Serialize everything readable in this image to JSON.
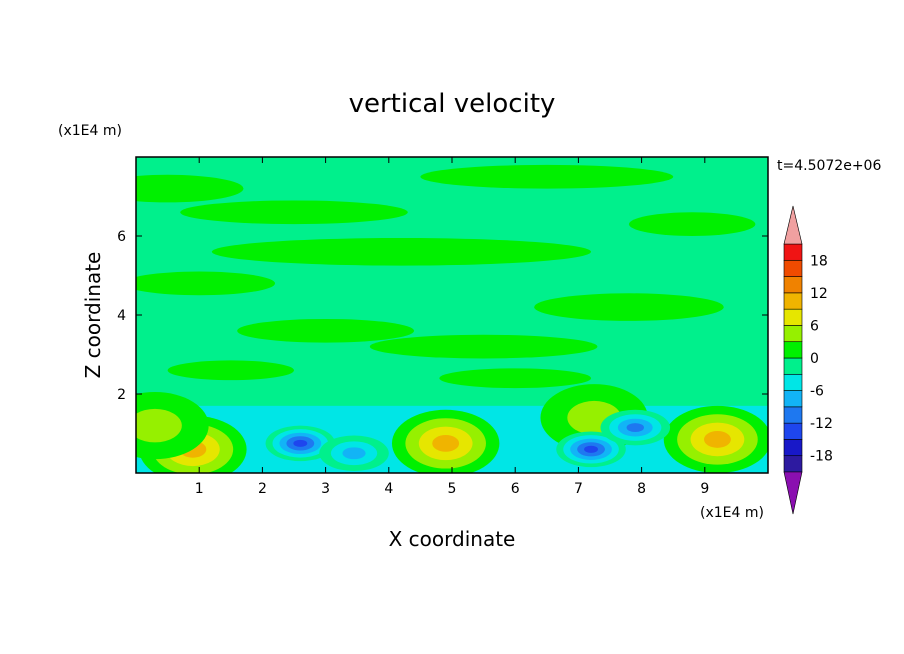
{
  "chart_data": {
    "type": "heatmap",
    "title": "vertical velocity",
    "xlabel": "X coordinate",
    "ylabel": "Z coordinate",
    "x_unit": "(x1E4 m)",
    "y_unit": "(x1E4 m)",
    "time_label": "t=4.5072e+06",
    "xlim": [
      0,
      10
    ],
    "ylim": [
      0,
      8
    ],
    "x_ticks": [
      "1",
      "2",
      "3",
      "4",
      "5",
      "6",
      "7",
      "8",
      "9"
    ],
    "y_ticks": [
      "2",
      "4",
      "6"
    ],
    "colorbar": {
      "levels": [
        -21,
        -18,
        -15,
        -12,
        -9,
        -6,
        -3,
        0,
        3,
        6,
        9,
        12,
        15,
        18,
        21
      ],
      "tick_labels": [
        "18",
        "12",
        "6",
        "0",
        "-6",
        "-12",
        "-18"
      ],
      "colors": [
        "#6a0dad",
        "#2d1aa0",
        "#1818c8",
        "#1e46ee",
        "#1e78f0",
        "#12b4f6",
        "#00e6e6",
        "#00f08c",
        "#00f000",
        "#96f000",
        "#e6e600",
        "#f0b400",
        "#f08200",
        "#f04b00",
        "#f01414",
        "#f0a0a0"
      ],
      "over_color": "#f0a0a0",
      "under_color": "#8a0fb0"
    },
    "features": [
      {
        "type": "updraft",
        "x": 0.9,
        "z": 0.6,
        "peak": 9
      },
      {
        "type": "updraft",
        "x": 4.9,
        "z": 0.75,
        "peak": 10
      },
      {
        "type": "updraft",
        "x": 9.2,
        "z": 0.85,
        "peak": 9
      },
      {
        "type": "updraft",
        "x": 0.3,
        "z": 1.2,
        "peak": 4
      },
      {
        "type": "updraft",
        "x": 7.25,
        "z": 1.4,
        "peak": 4
      },
      {
        "type": "downdraft",
        "x": 2.6,
        "z": 0.75,
        "peak": -14
      },
      {
        "type": "downdraft",
        "x": 7.2,
        "z": 0.6,
        "peak": -14
      },
      {
        "type": "downdraft",
        "x": 7.9,
        "z": 1.15,
        "peak": -9
      },
      {
        "type": "downdraft",
        "x": 3.45,
        "z": 0.5,
        "peak": -8
      }
    ]
  }
}
